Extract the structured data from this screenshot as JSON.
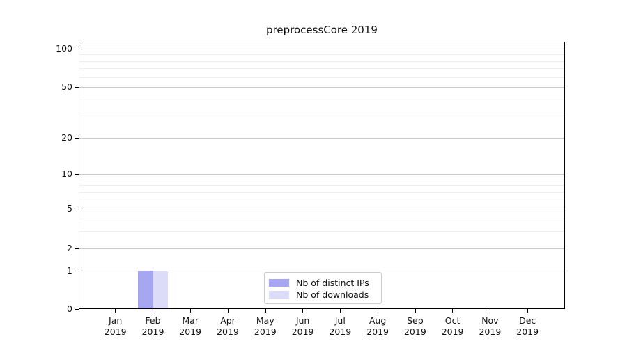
{
  "title": "preprocessCore 2019",
  "chart_data": {
    "type": "bar",
    "title": "preprocessCore 2019",
    "months": [
      "Jan",
      "Feb",
      "Mar",
      "Apr",
      "May",
      "Jun",
      "Jul",
      "Aug",
      "Sep",
      "Oct",
      "Nov",
      "Dec"
    ],
    "year_label": "2019",
    "series": [
      {
        "name": "Nb of distinct IPs",
        "slug": "distinct-ips",
        "color": "#a6a6f1",
        "values": [
          0,
          1,
          0,
          0,
          0,
          0,
          0,
          0,
          0,
          0,
          0,
          0
        ]
      },
      {
        "name": "Nb of downloads",
        "slug": "downloads",
        "color": "#dcdcf8",
        "values": [
          0,
          1,
          0,
          0,
          0,
          0,
          0,
          0,
          0,
          0,
          0,
          0
        ]
      }
    ],
    "y_axis": {
      "scale": "log-like with zero baseline",
      "ticks": [
        0,
        1,
        2,
        5,
        10,
        20,
        50,
        100
      ],
      "minor_ticks": [
        3,
        4,
        6,
        7,
        8,
        9,
        30,
        40,
        60,
        70,
        80,
        90
      ],
      "ylim": [
        0,
        120
      ]
    },
    "grid": {
      "horizontal": true,
      "major_color": "#c9c9c9",
      "minor_color": "#ededed"
    },
    "legend": {
      "position": "inside-bottom-center",
      "entries": [
        "Nb of distinct IPs",
        "Nb of downloads"
      ]
    }
  }
}
